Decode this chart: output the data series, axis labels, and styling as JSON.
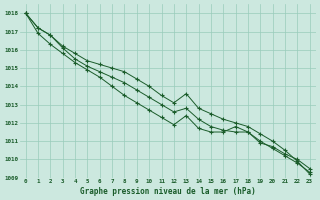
{
  "title": "Graphe pression niveau de la mer (hPa)",
  "bg_color": "#cce8df",
  "grid_color": "#99ccbb",
  "line_color": "#1a5c2a",
  "x_ticks": [
    0,
    1,
    2,
    3,
    4,
    5,
    6,
    7,
    8,
    9,
    10,
    11,
    12,
    13,
    14,
    15,
    16,
    17,
    18,
    19,
    20,
    21,
    22,
    23
  ],
  "ylim": [
    1009,
    1018.5
  ],
  "yticks": [
    1009,
    1010,
    1011,
    1012,
    1013,
    1014,
    1015,
    1016,
    1017,
    1018
  ],
  "series": [
    [
      1018.0,
      1017.2,
      1016.8,
      1016.2,
      1015.8,
      1015.4,
      1015.2,
      1015.0,
      1014.8,
      1014.4,
      1014.0,
      1013.5,
      1013.1,
      1013.6,
      1012.8,
      1012.5,
      1012.2,
      1012.0,
      1011.8,
      1011.4,
      1011.0,
      1010.5,
      1009.9,
      1009.2
    ],
    [
      1018.0,
      1017.2,
      1016.8,
      1016.1,
      1015.5,
      1015.1,
      1014.8,
      1014.5,
      1014.2,
      1013.8,
      1013.4,
      1013.0,
      1012.6,
      1012.8,
      1012.2,
      1011.8,
      1011.6,
      1011.5,
      1011.5,
      1011.0,
      1010.6,
      1010.2,
      1009.8,
      1009.3
    ],
    [
      1018.0,
      1016.9,
      1016.3,
      1015.8,
      1015.3,
      1014.9,
      1014.5,
      1014.0,
      1013.5,
      1013.1,
      1012.7,
      1012.3,
      1011.9,
      1012.4,
      1011.7,
      1011.5,
      1011.5,
      1011.8,
      1011.5,
      1010.9,
      1010.7,
      1010.3,
      1010.0,
      1009.5
    ]
  ]
}
